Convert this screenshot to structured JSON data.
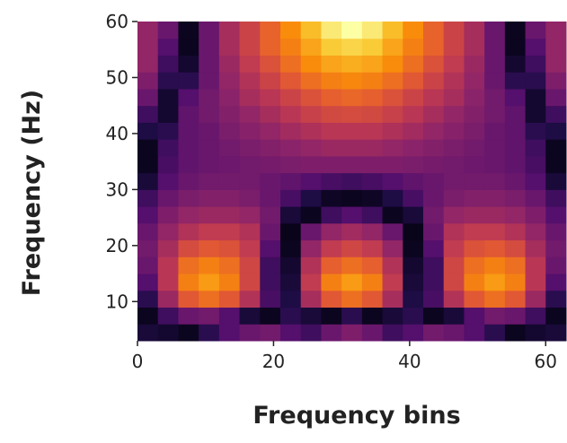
{
  "chart_data": {
    "type": "heatmap",
    "colormap": "inferno",
    "x_label": "Frequency bins",
    "y_label": "Frequency (Hz)",
    "xlim": [
      0,
      63
    ],
    "ylim": [
      3,
      60
    ],
    "xticks": [
      0,
      20,
      40,
      60
    ],
    "yticks": [
      10,
      20,
      30,
      40,
      50,
      60
    ],
    "x_bins": [
      0,
      3,
      6,
      9,
      12,
      15,
      18,
      21,
      24,
      27,
      30,
      33,
      36,
      39,
      42,
      45,
      48,
      51,
      54,
      57,
      60,
      63
    ],
    "y_bins": [
      3,
      6,
      9,
      12,
      15,
      18,
      21,
      24,
      27,
      30,
      33,
      36,
      39,
      42,
      45,
      48,
      51,
      54,
      57,
      60
    ],
    "values": [
      [
        0.1,
        0.08,
        0.05,
        0.15,
        0.25,
        0.3,
        0.32,
        0.25,
        0.2,
        0.3,
        0.35,
        0.3,
        0.2,
        0.25,
        0.32,
        0.3,
        0.25,
        0.15,
        0.05,
        0.08,
        0.1
      ],
      [
        0.05,
        0.2,
        0.3,
        0.32,
        0.25,
        0.1,
        0.05,
        0.15,
        0.1,
        0.05,
        0.15,
        0.05,
        0.1,
        0.15,
        0.05,
        0.1,
        0.25,
        0.32,
        0.3,
        0.2,
        0.05
      ],
      [
        0.15,
        0.42,
        0.62,
        0.68,
        0.62,
        0.48,
        0.22,
        0.12,
        0.45,
        0.62,
        0.68,
        0.62,
        0.45,
        0.12,
        0.22,
        0.48,
        0.62,
        0.68,
        0.62,
        0.42,
        0.15
      ],
      [
        0.25,
        0.5,
        0.72,
        0.78,
        0.72,
        0.56,
        0.2,
        0.1,
        0.52,
        0.72,
        0.78,
        0.72,
        0.52,
        0.1,
        0.2,
        0.56,
        0.72,
        0.78,
        0.72,
        0.5,
        0.25
      ],
      [
        0.3,
        0.5,
        0.68,
        0.72,
        0.68,
        0.56,
        0.2,
        0.08,
        0.48,
        0.64,
        0.68,
        0.64,
        0.48,
        0.08,
        0.2,
        0.56,
        0.68,
        0.72,
        0.68,
        0.5,
        0.3
      ],
      [
        0.32,
        0.45,
        0.58,
        0.62,
        0.6,
        0.52,
        0.25,
        0.05,
        0.4,
        0.52,
        0.56,
        0.52,
        0.4,
        0.05,
        0.25,
        0.52,
        0.6,
        0.62,
        0.58,
        0.45,
        0.32
      ],
      [
        0.3,
        0.4,
        0.48,
        0.52,
        0.52,
        0.48,
        0.3,
        0.04,
        0.3,
        0.4,
        0.44,
        0.4,
        0.3,
        0.04,
        0.3,
        0.48,
        0.52,
        0.52,
        0.48,
        0.4,
        0.3
      ],
      [
        0.25,
        0.35,
        0.4,
        0.42,
        0.42,
        0.4,
        0.32,
        0.1,
        0.05,
        0.2,
        0.25,
        0.2,
        0.05,
        0.1,
        0.32,
        0.4,
        0.42,
        0.42,
        0.4,
        0.35,
        0.25
      ],
      [
        0.2,
        0.3,
        0.34,
        0.36,
        0.36,
        0.34,
        0.3,
        0.22,
        0.12,
        0.06,
        0.05,
        0.06,
        0.12,
        0.22,
        0.3,
        0.34,
        0.36,
        0.36,
        0.34,
        0.3,
        0.2
      ],
      [
        0.1,
        0.25,
        0.3,
        0.32,
        0.32,
        0.32,
        0.3,
        0.28,
        0.25,
        0.22,
        0.2,
        0.22,
        0.25,
        0.28,
        0.3,
        0.32,
        0.32,
        0.32,
        0.3,
        0.25,
        0.1
      ],
      [
        0.05,
        0.22,
        0.28,
        0.3,
        0.31,
        0.32,
        0.33,
        0.34,
        0.35,
        0.35,
        0.35,
        0.35,
        0.35,
        0.34,
        0.33,
        0.32,
        0.31,
        0.3,
        0.28,
        0.22,
        0.05
      ],
      [
        0.05,
        0.2,
        0.28,
        0.3,
        0.32,
        0.34,
        0.36,
        0.38,
        0.4,
        0.42,
        0.42,
        0.42,
        0.4,
        0.38,
        0.36,
        0.34,
        0.32,
        0.3,
        0.28,
        0.2,
        0.05
      ],
      [
        0.12,
        0.15,
        0.28,
        0.3,
        0.34,
        0.37,
        0.4,
        0.44,
        0.47,
        0.5,
        0.5,
        0.5,
        0.47,
        0.44,
        0.4,
        0.37,
        0.34,
        0.3,
        0.28,
        0.15,
        0.12
      ],
      [
        0.2,
        0.08,
        0.28,
        0.32,
        0.36,
        0.4,
        0.45,
        0.5,
        0.54,
        0.57,
        0.58,
        0.57,
        0.54,
        0.5,
        0.45,
        0.4,
        0.36,
        0.32,
        0.28,
        0.08,
        0.2
      ],
      [
        0.3,
        0.08,
        0.25,
        0.32,
        0.38,
        0.45,
        0.5,
        0.55,
        0.6,
        0.64,
        0.66,
        0.64,
        0.6,
        0.55,
        0.5,
        0.45,
        0.38,
        0.32,
        0.25,
        0.08,
        0.3
      ],
      [
        0.35,
        0.15,
        0.15,
        0.3,
        0.4,
        0.48,
        0.55,
        0.62,
        0.68,
        0.72,
        0.74,
        0.72,
        0.68,
        0.62,
        0.55,
        0.48,
        0.4,
        0.3,
        0.15,
        0.15,
        0.35
      ],
      [
        0.4,
        0.2,
        0.08,
        0.3,
        0.42,
        0.52,
        0.6,
        0.68,
        0.75,
        0.8,
        0.82,
        0.8,
        0.75,
        0.68,
        0.6,
        0.52,
        0.42,
        0.3,
        0.08,
        0.2,
        0.4
      ],
      [
        0.4,
        0.25,
        0.05,
        0.3,
        0.45,
        0.55,
        0.65,
        0.72,
        0.8,
        0.88,
        0.9,
        0.88,
        0.8,
        0.72,
        0.65,
        0.55,
        0.45,
        0.3,
        0.05,
        0.25,
        0.4
      ],
      [
        0.4,
        0.3,
        0.05,
        0.3,
        0.45,
        0.55,
        0.65,
        0.75,
        0.85,
        0.95,
        1.0,
        0.95,
        0.85,
        0.75,
        0.65,
        0.55,
        0.45,
        0.3,
        0.05,
        0.3,
        0.4
      ]
    ]
  }
}
